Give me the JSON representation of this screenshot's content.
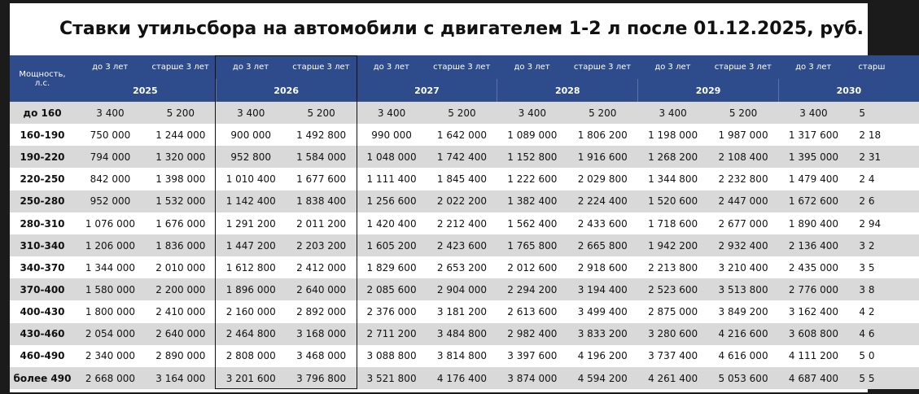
{
  "title": "Ставки утильсбора на автомобили с двигателем 1-2 л после 01.12.2025, руб.",
  "header": {
    "power": "Мощность, л.с.",
    "years": [
      "2025",
      "2026",
      "2027",
      "2028",
      "2029",
      "2030"
    ],
    "subheaders": [
      "до 3 лет",
      "старше 3 лет",
      "до 3 лет",
      "старше 3 лет",
      "до 3 лет",
      "старше 3 лет",
      "до 3 лет",
      "старше 3 лет",
      "до 3 лет",
      "старше 3 лет",
      "до 3 лет",
      "старш"
    ]
  },
  "rows": [
    {
      "label": "до 160",
      "values": [
        "3 400",
        "5 200",
        "3 400",
        "5 200",
        "3 400",
        "5 200",
        "3 400",
        "5 200",
        "3 400",
        "5 200",
        "3 400",
        "5"
      ]
    },
    {
      "label": "160-190",
      "values": [
        "750 000",
        "1 244 000",
        "900 000",
        "1 492 800",
        "990 000",
        "1 642 000",
        "1 089 000",
        "1 806 200",
        "1 198 000",
        "1 987 000",
        "1 317 600",
        "2 18"
      ]
    },
    {
      "label": "190-220",
      "values": [
        "794 000",
        "1 320 000",
        "952 800",
        "1 584 000",
        "1 048 000",
        "1 742 400",
        "1 152 800",
        "1 916 600",
        "1 268 200",
        "2 108 400",
        "1 395 000",
        "2 31"
      ]
    },
    {
      "label": "220-250",
      "values": [
        "842 000",
        "1 398 000",
        "1 010 400",
        "1 677 600",
        "1 111 400",
        "1 845 400",
        "1 222 600",
        "2 029 800",
        "1 344 800",
        "2 232 800",
        "1 479 400",
        "2 4"
      ]
    },
    {
      "label": "250-280",
      "values": [
        "952 000",
        "1 532 000",
        "1 142 400",
        "1 838 400",
        "1 256 600",
        "2 022 200",
        "1 382 400",
        "2 224 400",
        "1 520 600",
        "2 447 000",
        "1 672 600",
        "2 6"
      ]
    },
    {
      "label": "280-310",
      "values": [
        "1 076 000",
        "1 676 000",
        "1 291 200",
        "2 011 200",
        "1 420 400",
        "2 212 400",
        "1 562 400",
        "2 433 600",
        "1 718 600",
        "2 677 000",
        "1 890 400",
        "2 94"
      ]
    },
    {
      "label": "310-340",
      "values": [
        "1 206 000",
        "1 836 000",
        "1 447 200",
        "2 203 200",
        "1 605 200",
        "2 423 600",
        "1 765 800",
        "2 665 800",
        "1 942 200",
        "2 932 400",
        "2 136 400",
        "3 2"
      ]
    },
    {
      "label": "340-370",
      "values": [
        "1 344 000",
        "2 010 000",
        "1 612 800",
        "2 412 000",
        "1 829 600",
        "2 653 200",
        "2 012 600",
        "2 918 600",
        "2 213 800",
        "3 210 400",
        "2 435 000",
        "3 5"
      ]
    },
    {
      "label": "370-400",
      "values": [
        "1 580 000",
        "2 200 000",
        "1 896 000",
        "2 640 000",
        "2 085 600",
        "2 904 000",
        "2 294 200",
        "3 194 400",
        "2 523 600",
        "3 513 800",
        "2 776 000",
        "3 8"
      ]
    },
    {
      "label": "400-430",
      "values": [
        "1 800 000",
        "2 410 000",
        "2 160 000",
        "2 892 000",
        "2 376 000",
        "3 181 200",
        "2 613 600",
        "3 499 400",
        "2 875 000",
        "3 849 200",
        "3 162 400",
        "4 2"
      ]
    },
    {
      "label": "430-460",
      "values": [
        "2 054 000",
        "2 640 000",
        "2 464 800",
        "3 168 000",
        "2 711 200",
        "3 484 800",
        "2 982 400",
        "3 833 200",
        "3 280 600",
        "4 216 600",
        "3 608 800",
        "4 6"
      ]
    },
    {
      "label": "460-490",
      "values": [
        "2 340 000",
        "2 890 000",
        "2 808 000",
        "3 468 000",
        "3 088 800",
        "3 814 800",
        "3 397 600",
        "4 196 200",
        "3 737 400",
        "4 616 000",
        "4 111 200",
        "5 0"
      ]
    },
    {
      "label": "более 490",
      "values": [
        "2 668 000",
        "3 164 000",
        "3 201 600",
        "3 796 800",
        "3 521 800",
        "4 176 400",
        "3 874 000",
        "4 594 200",
        "4 261 400",
        "5 053 600",
        "4 687 400",
        "5 5"
      ]
    }
  ]
}
